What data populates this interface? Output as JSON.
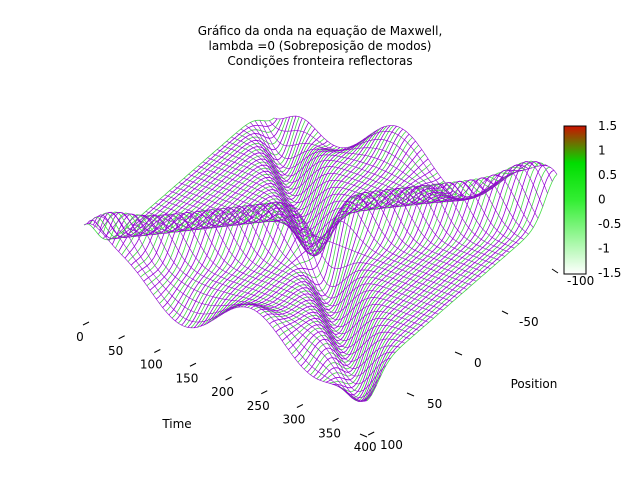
{
  "chart_data": {
    "type": "surface",
    "title": [
      "Gráfico da onda na equação de Maxwell,",
      "lambda =0 (Sobreposição de modos)",
      "Condições fronteira reflectoras"
    ],
    "xlabel": "Time",
    "ylabel": "Position",
    "x_ticks": [
      "0",
      "50",
      "100",
      "150",
      "200",
      "250",
      "300",
      "350",
      "400"
    ],
    "y_ticks": [
      "-100",
      "-50",
      "0",
      "50",
      "100"
    ],
    "xlim": [
      0,
      400
    ],
    "ylim": [
      -100,
      100
    ],
    "zlim": [
      -1.5,
      1.5
    ],
    "colorbar": {
      "ticks": [
        "1.5",
        "1",
        "0.5",
        "0",
        "-0.5",
        "-1",
        "-1.5"
      ],
      "colors": [
        "#ffffff",
        "#00e000",
        "#cc0000"
      ]
    },
    "series_color": "#9400d3",
    "surface": {
      "description_free": true,
      "pulses": [
        {
          "y0": -100,
          "y1": 100,
          "t0": 0,
          "t1": 400,
          "amp": 1.0
        },
        {
          "y0": 100,
          "y1": -100,
          "t0": 0,
          "t1": 400,
          "amp": -1.0
        }
      ],
      "pulse_width": 12
    },
    "legend_position": "right"
  }
}
